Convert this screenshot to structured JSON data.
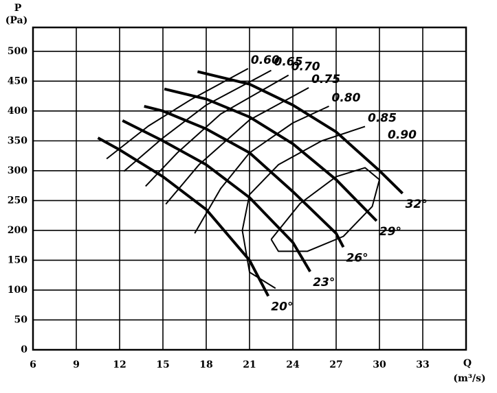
{
  "chart_data": {
    "type": "line",
    "ylabel": "P",
    "yunit": "(Pa)",
    "xlabel": "Q",
    "xunit": "(m³/s)",
    "xlim": [
      6,
      36
    ],
    "ylim": [
      0,
      540
    ],
    "xticks": [
      6,
      9,
      12,
      15,
      18,
      21,
      24,
      27,
      30,
      33
    ],
    "yticks": [
      0,
      50,
      100,
      150,
      200,
      250,
      300,
      350,
      400,
      450,
      500
    ],
    "grid": true,
    "color": "#000000",
    "series": [
      {
        "name": "20°",
        "line_width": 4,
        "x": [
          10.5,
          12,
          15,
          18,
          21,
          22.3
        ],
        "values": [
          355,
          335,
          290,
          235,
          150,
          90
        ]
      },
      {
        "name": "23°",
        "line_width": 4,
        "x": [
          12.2,
          15,
          18,
          21,
          24,
          25.2
        ],
        "values": [
          384,
          350,
          310,
          255,
          180,
          131
        ]
      },
      {
        "name": "26°",
        "line_width": 4,
        "x": [
          13.7,
          15,
          18,
          21,
          24,
          27,
          27.5
        ],
        "values": [
          408,
          400,
          370,
          330,
          265,
          195,
          172
        ]
      },
      {
        "name": "29°",
        "line_width": 4,
        "x": [
          15.1,
          18,
          21,
          24,
          27,
          29.8
        ],
        "values": [
          437,
          420,
          390,
          345,
          285,
          216
        ]
      },
      {
        "name": "32°",
        "line_width": 4,
        "x": [
          17.4,
          21,
          24,
          27,
          30,
          31.6
        ],
        "values": [
          466,
          445,
          410,
          365,
          300,
          262
        ]
      },
      {
        "name": "0.60",
        "line_width": 2,
        "x": [
          11.1,
          14,
          17,
          20.9
        ],
        "values": [
          320,
          375,
          420,
          471
        ]
      },
      {
        "name": "0.65",
        "line_width": 2,
        "x": [
          12.3,
          15,
          18,
          22.5
        ],
        "values": [
          299,
          355,
          410,
          468
        ]
      },
      {
        "name": "0.70",
        "line_width": 2,
        "x": [
          13.8,
          16,
          19,
          23.7
        ],
        "values": [
          274,
          330,
          395,
          460
        ]
      },
      {
        "name": "0.75",
        "line_width": 2,
        "x": [
          15.2,
          17.5,
          21,
          25.1
        ],
        "values": [
          244,
          310,
          385,
          439
        ]
      },
      {
        "name": "0.80",
        "line_width": 2,
        "x": [
          17.2,
          19,
          21,
          24,
          26.5
        ],
        "values": [
          195,
          270,
          330,
          380,
          408
        ]
      },
      {
        "name": "0.85",
        "line_width": 2,
        "x": [
          22.8,
          21,
          20.5,
          21,
          23,
          26,
          29
        ],
        "values": [
          103,
          130,
          200,
          260,
          310,
          350,
          374
        ]
      },
      {
        "name": "0.90",
        "line_width": 2,
        "x": [
          22.5,
          23,
          25,
          27.5,
          29.5,
          30,
          29,
          27,
          24.5,
          22.5
        ],
        "values": [
          185,
          165,
          165,
          190,
          240,
          285,
          305,
          290,
          245,
          185
        ]
      }
    ]
  }
}
